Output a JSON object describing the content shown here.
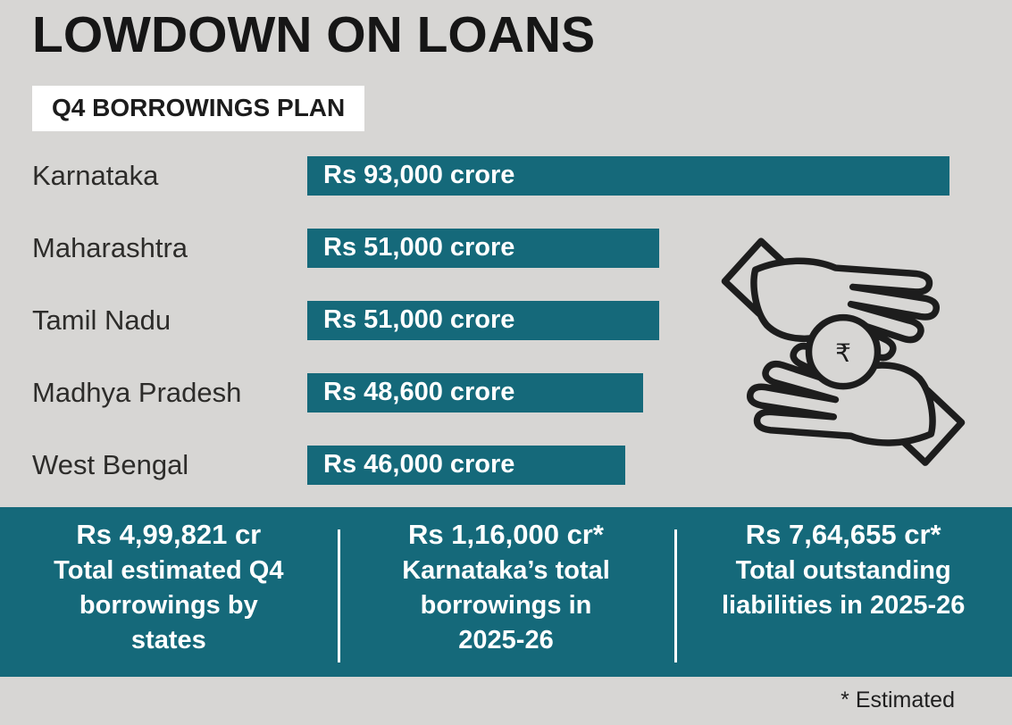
{
  "title": "LOWDOWN ON LOANS",
  "subtitle": "Q4 BORROWINGS PLAN",
  "footnote": "* Estimated",
  "colors": {
    "teal": "#15697a",
    "background": "#d7d6d4",
    "bar_text": "#ffffff",
    "title_text": "#161616"
  },
  "chart_data": {
    "type": "bar",
    "orientation": "horizontal",
    "title": "Q4 BORROWINGS PLAN",
    "categories": [
      "Karnataka",
      "Maharashtra",
      "Tamil Nadu",
      "Madhya Pradesh",
      "West Bengal"
    ],
    "values": [
      93000,
      51000,
      51000,
      48600,
      46000
    ],
    "value_labels": [
      "Rs 93,000 crore",
      "Rs 51,000 crore",
      "Rs 51,000 crore",
      "Rs 48,600 crore",
      "Rs 46,000 crore"
    ],
    "unit": "Rs crore",
    "xlim": [
      0,
      93000
    ],
    "grid": false,
    "legend": false
  },
  "summary_stats": [
    {
      "value": "Rs 4,99,821 cr",
      "label": "Total estimated Q4 borrowings by states"
    },
    {
      "value": "Rs 1,16,000 cr*",
      "label": "Karnataka’s total borrowings in 2025-26"
    },
    {
      "value": "Rs 7,64,655 cr*",
      "label": "Total outstanding liabilities in 2025-26"
    }
  ],
  "icon": {
    "name": "hands-exchange-rupee",
    "coin_symbol": "₹"
  }
}
